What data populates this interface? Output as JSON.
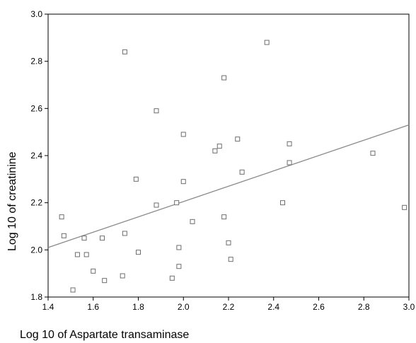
{
  "chart_data": {
    "type": "scatter",
    "title": "",
    "xlabel": "Log 10 of Aspartate transaminase",
    "ylabel": "Log 10 of creatinine",
    "xlim": [
      1.4,
      3.0
    ],
    "ylim": [
      1.8,
      3.0
    ],
    "x_ticks": [
      "1.4",
      "1.6",
      "1.8",
      "2.0",
      "2.2",
      "2.4",
      "2.6",
      "2.8",
      "3.0"
    ],
    "y_ticks": [
      "1.8",
      "2.0",
      "2.2",
      "2.4",
      "2.6",
      "2.8",
      "3.0"
    ],
    "grid": false,
    "marker": "open-square",
    "series": [
      {
        "points": [
          {
            "x": 1.46,
            "y": 2.14
          },
          {
            "x": 1.47,
            "y": 2.06
          },
          {
            "x": 1.51,
            "y": 1.83
          },
          {
            "x": 1.53,
            "y": 1.98
          },
          {
            "x": 1.56,
            "y": 2.05
          },
          {
            "x": 1.57,
            "y": 1.98
          },
          {
            "x": 1.6,
            "y": 1.91
          },
          {
            "x": 1.64,
            "y": 2.05
          },
          {
            "x": 1.65,
            "y": 1.87
          },
          {
            "x": 1.73,
            "y": 1.89
          },
          {
            "x": 1.74,
            "y": 2.07
          },
          {
            "x": 1.74,
            "y": 2.84
          },
          {
            "x": 1.79,
            "y": 2.3
          },
          {
            "x": 1.8,
            "y": 1.99
          },
          {
            "x": 1.88,
            "y": 2.59
          },
          {
            "x": 1.88,
            "y": 2.19
          },
          {
            "x": 1.95,
            "y": 1.88
          },
          {
            "x": 1.97,
            "y": 2.2
          },
          {
            "x": 1.98,
            "y": 2.01
          },
          {
            "x": 1.98,
            "y": 1.93
          },
          {
            "x": 2.0,
            "y": 2.49
          },
          {
            "x": 2.0,
            "y": 2.29
          },
          {
            "x": 2.04,
            "y": 2.12
          },
          {
            "x": 2.14,
            "y": 2.42
          },
          {
            "x": 2.16,
            "y": 2.44
          },
          {
            "x": 2.18,
            "y": 2.73
          },
          {
            "x": 2.18,
            "y": 2.14
          },
          {
            "x": 2.2,
            "y": 2.03
          },
          {
            "x": 2.21,
            "y": 1.96
          },
          {
            "x": 2.24,
            "y": 2.47
          },
          {
            "x": 2.26,
            "y": 2.33
          },
          {
            "x": 2.37,
            "y": 2.88
          },
          {
            "x": 2.44,
            "y": 2.2
          },
          {
            "x": 2.47,
            "y": 2.45
          },
          {
            "x": 2.47,
            "y": 2.37
          },
          {
            "x": 2.84,
            "y": 2.41
          },
          {
            "x": 2.98,
            "y": 2.18
          }
        ]
      }
    ],
    "fit_line": {
      "type": "linear",
      "x": [
        1.4,
        3.0
      ],
      "y": [
        2.01,
        2.53
      ]
    },
    "colors": {
      "marker": "#6e6e6e",
      "fit_line": "#8a8a8a",
      "axis": "#000000"
    }
  }
}
